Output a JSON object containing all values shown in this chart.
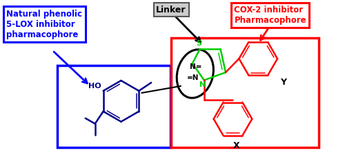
{
  "fig_width": 5.0,
  "fig_height": 2.25,
  "dpi": 100,
  "bg_color": "#ffffff",
  "colors": {
    "blue": "#0000ff",
    "red": "#ff0000",
    "green": "#00cc00",
    "black": "#000000",
    "dark_blue": "#00008b",
    "gray_ec": "#666666",
    "gray_fc": "#cccccc"
  },
  "linker_text": "Linker",
  "blue_label_text": "Natural phenolic\n5-LOX inhibitor\npharmacophore",
  "red_label_text": "COX-2 inhibitor\nPharmacophore"
}
